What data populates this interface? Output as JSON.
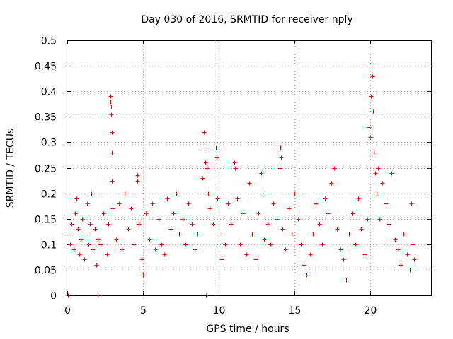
{
  "chart_data": {
    "type": "scatter",
    "title": "Day 030 of 2016, SRMTID for receiver nply",
    "xlabel": "GPS time / hours",
    "ylabel": "SRMTID / TECUs",
    "xlim": [
      0,
      24
    ],
    "ylim": [
      0,
      0.5
    ],
    "x_ticks": [
      0,
      5,
      10,
      15,
      20
    ],
    "x_tick_labels": [
      "0",
      "5",
      "10",
      "15",
      "20"
    ],
    "y_ticks": [
      0,
      0.05,
      0.1,
      0.15,
      0.2,
      0.25,
      0.3,
      0.35,
      0.4,
      0.45,
      0.5
    ],
    "y_tick_labels": [
      "0",
      "0.05",
      "0.1",
      "0.15",
      "0.2",
      "0.25",
      "0.3",
      "0.35",
      "0.4",
      "0.45",
      "0.5"
    ],
    "grid": true,
    "marker": "+",
    "color": "#ff0000",
    "series": [
      {
        "name": "SRMTID",
        "points": [
          [
            0.05,
            0.0
          ],
          [
            0.08,
            0.0
          ],
          [
            2.0,
            0.0
          ],
          [
            9.15,
            0.0
          ],
          [
            0.1,
            0.12
          ],
          [
            0.2,
            0.1
          ],
          [
            0.3,
            0.14
          ],
          [
            0.4,
            0.09
          ],
          [
            0.5,
            0.16
          ],
          [
            0.6,
            0.19
          ],
          [
            0.7,
            0.13
          ],
          [
            0.8,
            0.08
          ],
          [
            0.9,
            0.11
          ],
          [
            1.0,
            0.15
          ],
          [
            1.1,
            0.07
          ],
          [
            1.2,
            0.12
          ],
          [
            1.3,
            0.18
          ],
          [
            1.4,
            0.1
          ],
          [
            1.5,
            0.14
          ],
          [
            1.6,
            0.2
          ],
          [
            1.7,
            0.09
          ],
          [
            1.8,
            0.13
          ],
          [
            1.9,
            0.06
          ],
          [
            2.0,
            0.11
          ],
          [
            2.2,
            0.1
          ],
          [
            2.4,
            0.16
          ],
          [
            2.6,
            0.08
          ],
          [
            2.7,
            0.14
          ],
          [
            2.85,
            0.39
          ],
          [
            2.87,
            0.38
          ],
          [
            2.88,
            0.37
          ],
          [
            2.9,
            0.355
          ],
          [
            2.92,
            0.32
          ],
          [
            2.94,
            0.28
          ],
          [
            2.96,
            0.225
          ],
          [
            3.0,
            0.17
          ],
          [
            3.2,
            0.11
          ],
          [
            3.4,
            0.18
          ],
          [
            3.6,
            0.09
          ],
          [
            3.8,
            0.2
          ],
          [
            4.0,
            0.13
          ],
          [
            4.2,
            0.17
          ],
          [
            4.4,
            0.1
          ],
          [
            4.6,
            0.235
          ],
          [
            4.62,
            0.225
          ],
          [
            4.7,
            0.14
          ],
          [
            4.9,
            0.07
          ],
          [
            5.0,
            0.04
          ],
          [
            5.2,
            0.16
          ],
          [
            5.4,
            0.11
          ],
          [
            5.6,
            0.18
          ],
          [
            5.8,
            0.09
          ],
          [
            6.0,
            0.15
          ],
          [
            6.2,
            0.1
          ],
          [
            6.4,
            0.08
          ],
          [
            6.6,
            0.19
          ],
          [
            6.8,
            0.13
          ],
          [
            7.0,
            0.16
          ],
          [
            7.2,
            0.2
          ],
          [
            7.4,
            0.12
          ],
          [
            7.6,
            0.15
          ],
          [
            7.8,
            0.1
          ],
          [
            8.0,
            0.18
          ],
          [
            8.2,
            0.14
          ],
          [
            8.4,
            0.09
          ],
          [
            8.6,
            0.12
          ],
          [
            8.9,
            0.23
          ],
          [
            9.0,
            0.32
          ],
          [
            9.05,
            0.29
          ],
          [
            9.1,
            0.26
          ],
          [
            9.2,
            0.25
          ],
          [
            9.3,
            0.2
          ],
          [
            9.4,
            0.17
          ],
          [
            9.6,
            0.14
          ],
          [
            9.8,
            0.29
          ],
          [
            9.85,
            0.27
          ],
          [
            9.9,
            0.19
          ],
          [
            10.0,
            0.12
          ],
          [
            10.2,
            0.07
          ],
          [
            10.4,
            0.1
          ],
          [
            10.6,
            0.18
          ],
          [
            10.8,
            0.14
          ],
          [
            11.0,
            0.26
          ],
          [
            11.05,
            0.25
          ],
          [
            11.2,
            0.19
          ],
          [
            11.4,
            0.1
          ],
          [
            11.6,
            0.16
          ],
          [
            11.8,
            0.08
          ],
          [
            12.0,
            0.22
          ],
          [
            12.2,
            0.12
          ],
          [
            12.4,
            0.07
          ],
          [
            12.6,
            0.16
          ],
          [
            12.8,
            0.24
          ],
          [
            12.9,
            0.2
          ],
          [
            13.0,
            0.11
          ],
          [
            13.2,
            0.14
          ],
          [
            13.4,
            0.1
          ],
          [
            13.6,
            0.18
          ],
          [
            13.8,
            0.15
          ],
          [
            14.0,
            0.25
          ],
          [
            14.05,
            0.29
          ],
          [
            14.1,
            0.27
          ],
          [
            14.2,
            0.13
          ],
          [
            14.4,
            0.09
          ],
          [
            14.6,
            0.17
          ],
          [
            14.8,
            0.12
          ],
          [
            15.0,
            0.2
          ],
          [
            15.2,
            0.15
          ],
          [
            15.4,
            0.1
          ],
          [
            15.6,
            0.06
          ],
          [
            15.8,
            0.04
          ],
          [
            16.0,
            0.08
          ],
          [
            16.2,
            0.12
          ],
          [
            16.4,
            0.18
          ],
          [
            16.6,
            0.14
          ],
          [
            16.8,
            0.1
          ],
          [
            17.0,
            0.19
          ],
          [
            17.2,
            0.16
          ],
          [
            17.4,
            0.22
          ],
          [
            17.6,
            0.25
          ],
          [
            17.8,
            0.13
          ],
          [
            18.0,
            0.09
          ],
          [
            18.2,
            0.07
          ],
          [
            18.4,
            0.03
          ],
          [
            18.6,
            0.12
          ],
          [
            18.8,
            0.16
          ],
          [
            19.0,
            0.1
          ],
          [
            19.2,
            0.19
          ],
          [
            19.4,
            0.13
          ],
          [
            19.6,
            0.08
          ],
          [
            19.8,
            0.15
          ],
          [
            19.9,
            0.33
          ],
          [
            20.0,
            0.31
          ],
          [
            20.05,
            0.39
          ],
          [
            20.1,
            0.45
          ],
          [
            20.12,
            0.43
          ],
          [
            20.15,
            0.36
          ],
          [
            20.2,
            0.28
          ],
          [
            20.3,
            0.24
          ],
          [
            20.4,
            0.2
          ],
          [
            20.5,
            0.25
          ],
          [
            20.6,
            0.15
          ],
          [
            20.8,
            0.22
          ],
          [
            21.0,
            0.18
          ],
          [
            21.2,
            0.14
          ],
          [
            21.4,
            0.24
          ],
          [
            21.6,
            0.11
          ],
          [
            21.8,
            0.09
          ],
          [
            22.0,
            0.06
          ],
          [
            22.2,
            0.12
          ],
          [
            22.4,
            0.08
          ],
          [
            22.6,
            0.05
          ],
          [
            22.7,
            0.18
          ],
          [
            22.8,
            0.1
          ],
          [
            22.9,
            0.07
          ]
        ]
      }
    ]
  }
}
